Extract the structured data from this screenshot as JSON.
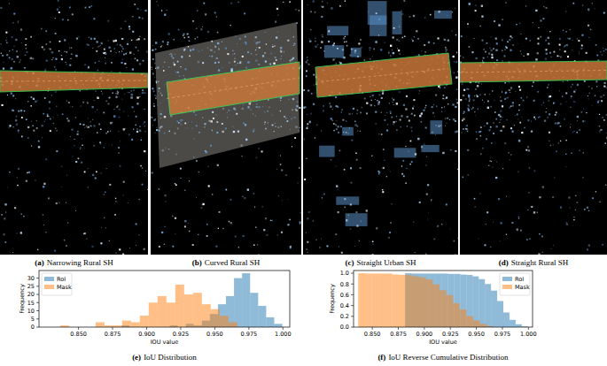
{
  "images": [
    {
      "label": "(a)",
      "caption": "Narrowing Rural SH"
    },
    {
      "label": "(b)",
      "caption": "Curved Rural SH"
    },
    {
      "label": "(c)",
      "caption": "Straight Urban SH"
    },
    {
      "label": "(d)",
      "caption": "Straight Rural SH"
    }
  ],
  "chart_data": [
    {
      "type": "histogram",
      "panel": "(e)",
      "title": "IoU Distribution",
      "x_label": "IOU value",
      "y_label": "Frequency",
      "xlim": [
        0.821,
        1.005
      ],
      "ylim": [
        0,
        34.65
      ],
      "xticks": [
        {
          "value": 0.85,
          "label": "0.850"
        },
        {
          "value": 0.875,
          "label": "0.875"
        },
        {
          "value": 0.9,
          "label": "0.900"
        },
        {
          "value": 0.925,
          "label": "0.925"
        },
        {
          "value": 0.95,
          "label": "0.950"
        },
        {
          "value": 0.975,
          "label": "0.975"
        },
        {
          "value": 1.0,
          "label": "1.000"
        }
      ],
      "yticks": [
        0,
        5,
        10,
        15,
        20,
        25,
        30
      ],
      "legend": "upper left",
      "series": [
        {
          "name": "RoI",
          "color": "#1f77b4",
          "bins": [
            0.8815,
            0.8874,
            0.8933,
            0.8992,
            0.9051,
            0.911,
            0.9169,
            0.9228,
            0.9287,
            0.9346,
            0.9405,
            0.9464,
            0.9523,
            0.9582,
            0.9641,
            0.97,
            0.9759,
            0.9818,
            0.9877,
            0.9936,
            0.9995
          ],
          "values": [
            1,
            0,
            0,
            0,
            0,
            0,
            1,
            0,
            2,
            1,
            4,
            8,
            14,
            19,
            30,
            33,
            21,
            13,
            6,
            2
          ]
        },
        {
          "name": "Mask",
          "color": "#ff7f0e",
          "bins": [
            0.8365,
            0.843,
            0.8495,
            0.856,
            0.8625,
            0.869,
            0.8755,
            0.882,
            0.8885,
            0.895,
            0.9015,
            0.908,
            0.9145,
            0.921,
            0.9275,
            0.934,
            0.9405,
            0.947,
            0.9535,
            0.96,
            0.9665
          ],
          "values": [
            1,
            0,
            0,
            0,
            3,
            1,
            1,
            4,
            3,
            7,
            15,
            19,
            15,
            26,
            20,
            21,
            14,
            11,
            7,
            3
          ]
        }
      ]
    },
    {
      "type": "histogram",
      "panel": "(f)",
      "title": "IoU Reverse Cumulative Distribution",
      "x_label": "IOU value",
      "y_label": "Frequency",
      "xlim": [
        0.832,
        1.004
      ],
      "ylim": [
        0,
        1.05
      ],
      "xticks": [
        {
          "value": 0.85,
          "label": "0.850"
        },
        {
          "value": 0.875,
          "label": "0.875"
        },
        {
          "value": 0.9,
          "label": "0.900"
        },
        {
          "value": 0.925,
          "label": "0.925"
        },
        {
          "value": 0.95,
          "label": "0.950"
        },
        {
          "value": 0.975,
          "label": "0.975"
        },
        {
          "value": 1.0,
          "label": "1.000"
        }
      ],
      "yticks": [
        {
          "value": 0,
          "label": "0.0"
        },
        0.2,
        0.4,
        0.6,
        0.8,
        {
          "value": 1,
          "label": "1.0"
        }
      ],
      "legend": "upper right",
      "series": [
        {
          "name": "RoI",
          "color": "#1f77b4",
          "bins": [
            0.8815,
            0.8874,
            0.8933,
            0.8992,
            0.9051,
            0.911,
            0.9169,
            0.9228,
            0.9287,
            0.9346,
            0.9405,
            0.9464,
            0.9523,
            0.9582,
            0.9641,
            0.97,
            0.9759,
            0.9818,
            0.9877,
            0.9936,
            0.9995
          ],
          "values": [
            1.0,
            0.994,
            0.994,
            0.994,
            0.994,
            0.994,
            0.994,
            0.987,
            0.987,
            0.974,
            0.968,
            0.942,
            0.89,
            0.8,
            0.677,
            0.484,
            0.271,
            0.135,
            0.052,
            0.013
          ]
        },
        {
          "name": "Mask",
          "color": "#ff7f0e",
          "bins": [
            0.8365,
            0.843,
            0.8495,
            0.856,
            0.8625,
            0.869,
            0.8755,
            0.882,
            0.8885,
            0.895,
            0.9015,
            0.908,
            0.9145,
            0.921,
            0.9275,
            0.934,
            0.9405,
            0.947,
            0.9535,
            0.96,
            0.9665
          ],
          "values": [
            1.0,
            0.994,
            0.994,
            0.994,
            0.994,
            0.977,
            0.971,
            0.965,
            0.942,
            0.924,
            0.883,
            0.795,
            0.684,
            0.596,
            0.444,
            0.327,
            0.205,
            0.123,
            0.058,
            0.018
          ]
        }
      ]
    }
  ]
}
